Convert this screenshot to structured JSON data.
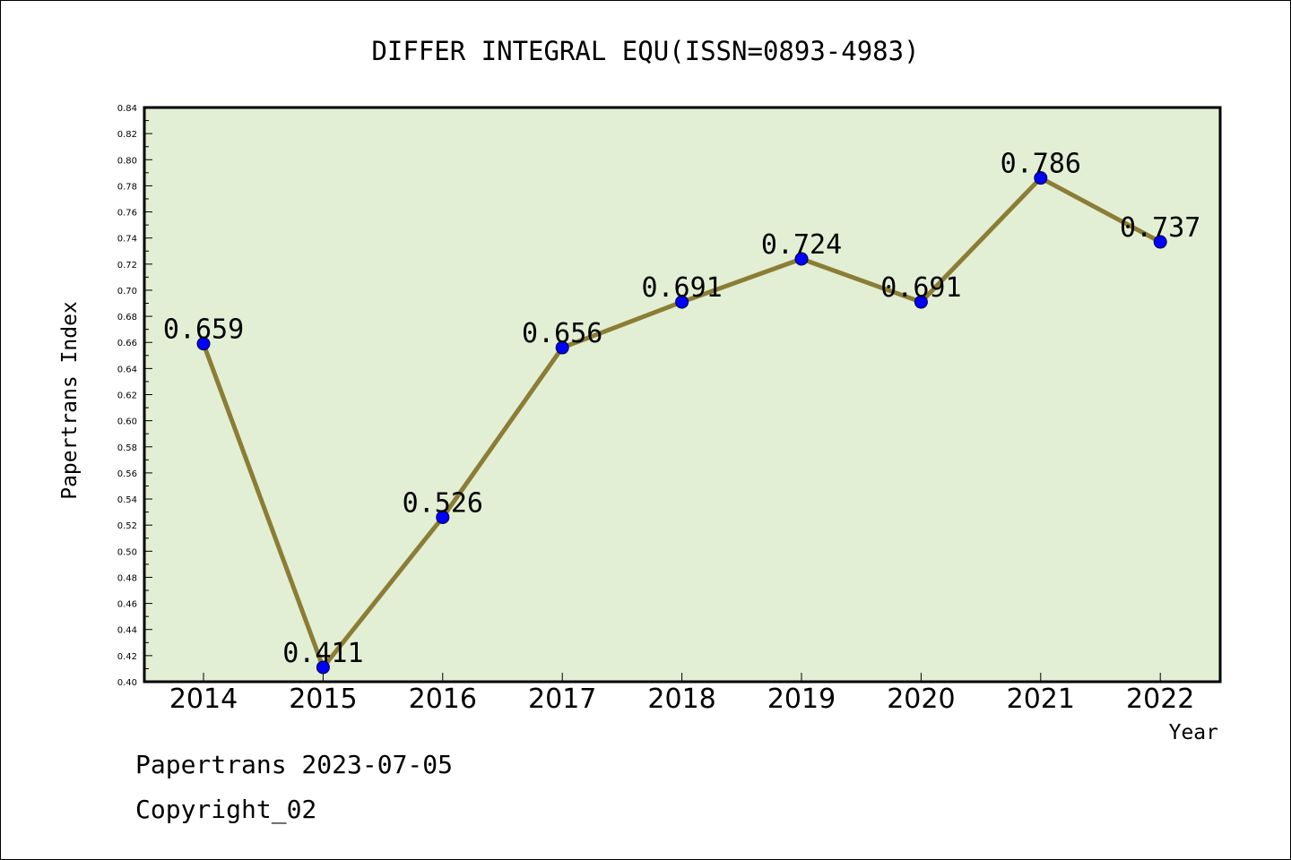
{
  "chart_data": {
    "type": "line",
    "title": "DIFFER INTEGRAL EQU(ISSN=0893-4983)",
    "xlabel": "Year",
    "ylabel": "Papertrans Index",
    "categories": [
      "2014",
      "2015",
      "2016",
      "2017",
      "2018",
      "2019",
      "2020",
      "2021",
      "2022"
    ],
    "series": [
      {
        "values": [
          0.659,
          0.411,
          0.526,
          0.656,
          0.691,
          0.724,
          0.691,
          0.786,
          0.737
        ],
        "data_labels": [
          "0.659",
          "0.411",
          "0.526",
          "0.656",
          "0.691",
          "0.724",
          "0.691",
          "0.786",
          "0.737"
        ]
      }
    ],
    "ylim": [
      0.4,
      0.84
    ],
    "yticks": [
      "0.40",
      "0.42",
      "0.44",
      "0.46",
      "0.48",
      "0.50",
      "0.52",
      "0.54",
      "0.56",
      "0.58",
      "0.60",
      "0.62",
      "0.64",
      "0.66",
      "0.68",
      "0.70",
      "0.72",
      "0.74",
      "0.76",
      "0.78",
      "0.80",
      "0.82",
      "0.84"
    ],
    "grid": false,
    "legend": "none",
    "colors": {
      "plot_background": "#e2efd4",
      "line": "#8b7d35",
      "marker": "#0000ff",
      "axis": "#000000"
    }
  },
  "footer": {
    "line1": "Papertrans 2023-07-05",
    "line2": "Copyright_02"
  }
}
